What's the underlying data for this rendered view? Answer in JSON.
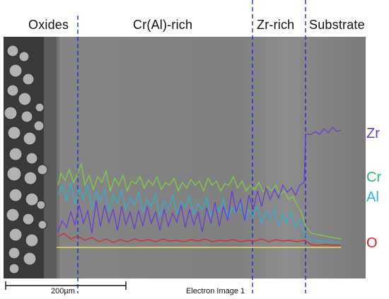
{
  "regions": {
    "oxides": "Oxides",
    "cr_al_rich": "Cr(Al)-rich",
    "zr_rich": "Zr-rich",
    "substrate": "Substrate"
  },
  "elements": {
    "zr": {
      "label": "Zr",
      "color": "#5a3fd8"
    },
    "cr": {
      "label": "Cr",
      "color": "#2fb86b"
    },
    "al": {
      "label": "Al",
      "color": "#2ab3d8"
    },
    "o": {
      "label": "O",
      "color": "#e02020"
    }
  },
  "scale_bar": "200µm",
  "caption": "Electron Image 1",
  "boundary_color": "#1a2fd0"
}
